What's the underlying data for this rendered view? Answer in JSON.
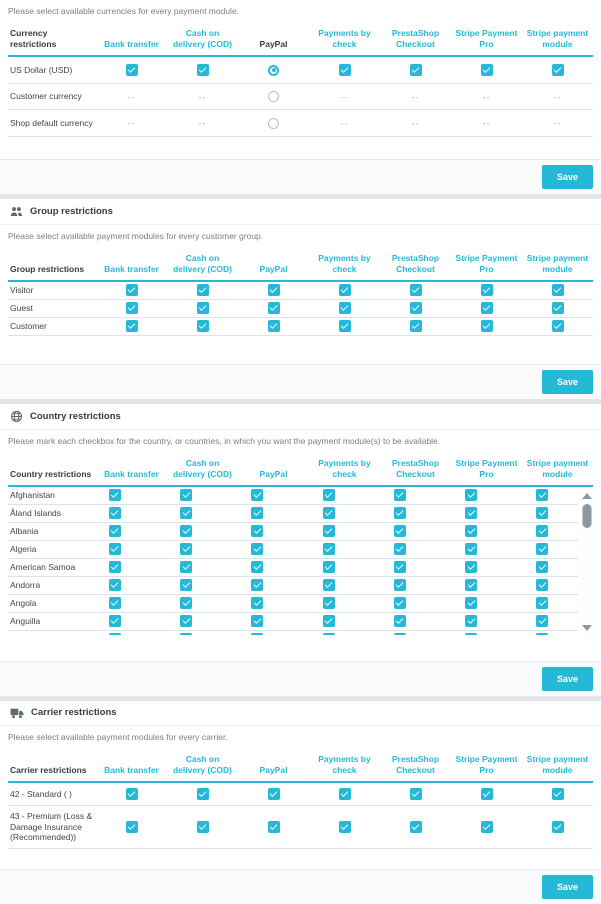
{
  "accent_color": "#25b9d7",
  "checkbox_color": "#25b9d7",
  "columns": [
    "Bank transfer",
    "Cash on delivery (COD)",
    "PayPal",
    "Payments by check",
    "PrestaShop Checkout",
    "Stripe Payment Pro",
    "Stripe payment module"
  ],
  "sections": {
    "currency": {
      "description": "Please select available currencies for every payment module.",
      "first_col": "Currency restrictions",
      "paypal_header_dark": true,
      "rows": [
        {
          "label": "US Dollar (USD)",
          "cells": [
            "checked",
            "checked",
            "radio_selected",
            "checked",
            "checked",
            "checked",
            "checked"
          ]
        },
        {
          "label": "Customer currency",
          "cells": [
            "dash",
            "dash",
            "radio",
            "dash",
            "dash",
            "dash",
            "dash"
          ]
        },
        {
          "label": "Shop default currency",
          "cells": [
            "dash",
            "dash",
            "radio",
            "dash",
            "dash",
            "dash",
            "dash"
          ]
        }
      ],
      "save_label": "Save"
    },
    "group": {
      "title": "Group restrictions",
      "icon": "group-icon",
      "description": "Please select available payment modules for every customer group.",
      "first_col": "Group restrictions",
      "rows": [
        {
          "label": "Visitor",
          "cells": [
            "checked",
            "checked",
            "checked",
            "checked",
            "checked",
            "checked",
            "checked"
          ]
        },
        {
          "label": "Guest",
          "cells": [
            "checked",
            "checked",
            "checked",
            "checked",
            "checked",
            "checked",
            "checked"
          ]
        },
        {
          "label": "Customer",
          "cells": [
            "checked",
            "checked",
            "checked",
            "checked",
            "checked",
            "checked",
            "checked"
          ]
        }
      ],
      "save_label": "Save"
    },
    "country": {
      "title": "Country restrictions",
      "icon": "globe-icon",
      "description": "Please mark each checkbox for the country, or countries, in which you want the payment module(s) to be available.",
      "first_col": "Country restrictions",
      "rows": [
        {
          "label": "Afghanistan",
          "cells": [
            "checked",
            "checked",
            "checked",
            "checked",
            "checked",
            "checked",
            "checked"
          ]
        },
        {
          "label": "Åland Islands",
          "cells": [
            "checked",
            "checked",
            "checked",
            "checked",
            "checked",
            "checked",
            "checked"
          ]
        },
        {
          "label": "Albania",
          "cells": [
            "checked",
            "checked",
            "checked",
            "checked",
            "checked",
            "checked",
            "checked"
          ]
        },
        {
          "label": "Algeria",
          "cells": [
            "checked",
            "checked",
            "checked",
            "checked",
            "checked",
            "checked",
            "checked"
          ]
        },
        {
          "label": "American Samoa",
          "cells": [
            "checked",
            "checked",
            "checked",
            "checked",
            "checked",
            "checked",
            "checked"
          ]
        },
        {
          "label": "Andorra",
          "cells": [
            "checked",
            "checked",
            "checked",
            "checked",
            "checked",
            "checked",
            "checked"
          ]
        },
        {
          "label": "Angola",
          "cells": [
            "checked",
            "checked",
            "checked",
            "checked",
            "checked",
            "checked",
            "checked"
          ]
        },
        {
          "label": "Anguilla",
          "cells": [
            "checked",
            "checked",
            "checked",
            "checked",
            "checked",
            "checked",
            "checked"
          ]
        },
        {
          "label": "Antarctica",
          "cells": [
            "checked",
            "checked",
            "checked",
            "checked",
            "checked",
            "checked",
            "checked"
          ]
        }
      ],
      "save_label": "Save"
    },
    "carrier": {
      "title": "Carrier restrictions",
      "icon": "truck-icon",
      "description": "Please select available payment modules for every carrier.",
      "first_col": "Carrier restrictions",
      "rows": [
        {
          "label": "42 - Standard ( )",
          "cells": [
            "checked",
            "checked",
            "checked",
            "checked",
            "checked",
            "checked",
            "checked"
          ]
        },
        {
          "label": "43 - Premium (Loss & Damage Insurance (Recommended))",
          "cells": [
            "checked",
            "checked",
            "checked",
            "checked",
            "checked",
            "checked",
            "checked"
          ]
        }
      ],
      "save_label": "Save"
    }
  }
}
